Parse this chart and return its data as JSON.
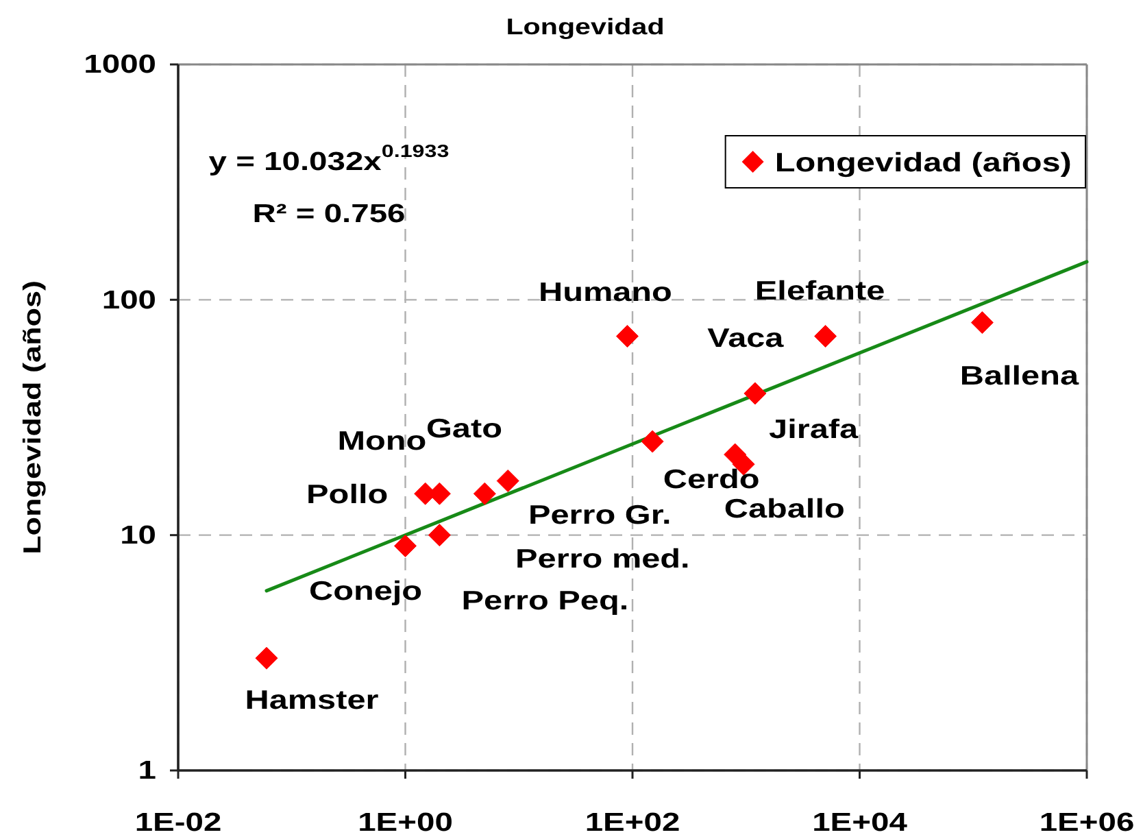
{
  "chart_data": {
    "type": "scatter",
    "title": "Longevidad",
    "ylabel": "Longevidad (años)",
    "log": "xy",
    "grid": true,
    "legend": "top right",
    "xlim": [
      0.01,
      1000000
    ],
    "xticks": [
      {
        "value": 0.01,
        "label": "1E-02"
      },
      {
        "value": 1,
        "label": "1E+00"
      },
      {
        "value": 100,
        "label": "1E+02"
      },
      {
        "value": 10000,
        "label": "1E+04"
      },
      {
        "value": 1000000,
        "label": "1E+06"
      }
    ],
    "ylim": [
      1,
      1000
    ],
    "yticks": [
      1,
      10,
      100,
      1000
    ],
    "series": [
      {
        "name": "Longevidad (años)",
        "color": "#ff0000",
        "marker": "diamond",
        "x": [
          0.06,
          1,
          1.5,
          2,
          2,
          5,
          8,
          90,
          150,
          800,
          950,
          1200,
          5000,
          120000
        ],
        "values": [
          3,
          9,
          15,
          15,
          10,
          15,
          17,
          70,
          25,
          22,
          20,
          40,
          70,
          80
        ]
      },
      {
        "type": "line",
        "color": "#178a17",
        "x": [
          0.06,
          1000000
        ],
        "values": [
          5.8,
          145
        ]
      }
    ],
    "annotations": [
      "y = 10.032x$^{0.1933}$",
      "R² = 0.756",
      {
        "text": "Humano",
        "x": 90,
        "y": 70
      },
      {
        "text": "Elefante",
        "x": 5000,
        "y": 70
      },
      {
        "text": "Vaca",
        "x": 1200,
        "y": 40
      },
      {
        "text": "Ballena",
        "x": 120000,
        "y": 80
      },
      {
        "text": "Jirafa",
        "x": 950,
        "y": 20
      },
      {
        "text": "Mono",
        "x": 2,
        "y": 15
      },
      {
        "text": "Gato",
        "x": 2,
        "y": 15
      },
      {
        "text": "Pollo",
        "x": 1.5,
        "y": 15
      },
      {
        "text": "Cerdo",
        "x": 150,
        "y": 25
      },
      {
        "text": "Caballo",
        "x": 800,
        "y": 22
      },
      {
        "text": "Perro Gr.",
        "x": 8,
        "y": 17
      },
      {
        "text": "Perro med.",
        "x": 5,
        "y": 15
      },
      {
        "text": "Conejo",
        "x": 1,
        "y": 9
      },
      {
        "text": "Perro Peq.",
        "x": 2,
        "y": 10
      },
      {
        "text": "Hamster",
        "x": 0.06,
        "y": 3
      }
    ]
  }
}
